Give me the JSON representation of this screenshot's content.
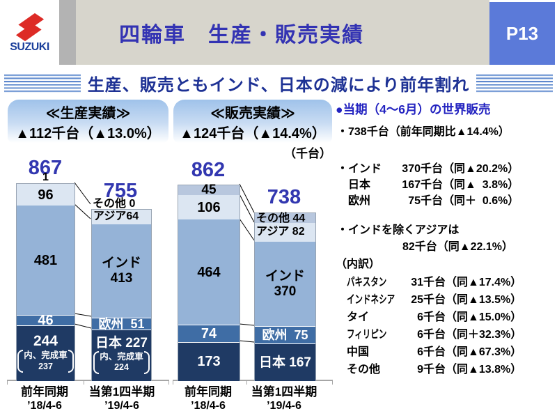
{
  "header": {
    "brand": "SUZUKI",
    "title": "四輪車　生産・販売実績",
    "page_label": "P13"
  },
  "banner": {
    "text": "生産、販売ともインド、日本の減により前年割れ"
  },
  "colors": {
    "segment_other": "#b8c7de",
    "segment_asia": "#dce6f2",
    "segment_india": "#95b3d7",
    "segment_europe": "#3f6da5",
    "segment_japan": "#1f3a64",
    "accent_blue": "#3237b0",
    "page_box_blue": "#5b7ad9",
    "logo_red": "#dd2b26"
  },
  "chart_data": [
    {
      "type": "bar",
      "stacked": true,
      "title": "≪生産実績≫",
      "change_label": "▲112千台（▲13.0%）",
      "unit": "千台",
      "categories": [
        "前年同期 ’18/4-6",
        "当第1四半期 ’19/4-6"
      ],
      "totals": [
        867,
        755
      ],
      "series": [
        {
          "name": "その他",
          "values": [
            1,
            0
          ]
        },
        {
          "name": "アジア",
          "values": [
            96,
            64
          ]
        },
        {
          "name": "インド",
          "values": [
            481,
            413
          ]
        },
        {
          "name": "欧州",
          "values": [
            46,
            51
          ]
        },
        {
          "name": "日本",
          "values": [
            244,
            227
          ]
        }
      ],
      "notes": {
        "label": "内、完成車",
        "values": [
          237,
          224
        ]
      }
    },
    {
      "type": "bar",
      "stacked": true,
      "title": "≪販売実績≫",
      "change_label": "▲124千台（▲14.4%）",
      "unit": "千台",
      "categories": [
        "前年同期 ’18/4-6",
        "当第1四半期 ’19/4-6"
      ],
      "totals": [
        862,
        738
      ],
      "series": [
        {
          "name": "その他",
          "values": [
            45,
            44
          ]
        },
        {
          "name": "アジア",
          "values": [
            106,
            82
          ]
        },
        {
          "name": "インド",
          "values": [
            464,
            370
          ]
        },
        {
          "name": "欧州",
          "values": [
            74,
            75
          ]
        },
        {
          "name": "日本",
          "values": [
            173,
            167
          ]
        }
      ]
    }
  ],
  "charts": [
    {
      "box_title": "≪生産実績≫",
      "box_delta": "▲112千台（▲13.0%）",
      "bars": [
        {
          "total": "867",
          "top_label": "1",
          "asia": "96",
          "india_l1": "481",
          "europe": "46",
          "japan": "244",
          "note1": "内、完成車",
          "note2": "237",
          "cat1": "前年同期",
          "cat2": "’18/4-6"
        },
        {
          "total": "755",
          "top_label": "その他 0",
          "asia_overlay": "アジア64",
          "india_l1": "インド",
          "india_l2": "413",
          "europe": "欧州  51",
          "japan": "日本 227",
          "note1": "内、完成車",
          "note2": "224",
          "cat1": "当第1四半期",
          "cat2": "’19/4-6"
        }
      ]
    },
    {
      "box_title": "≪販売実績≫",
      "box_delta": "▲124千台（▲14.4%）",
      "unit_label": "（千台）",
      "bars": [
        {
          "total": "862",
          "other": "45",
          "asia": "106",
          "india_l1": "464",
          "europe": "74",
          "japan": "173",
          "cat1": "前年同期",
          "cat2": "’18/4-6"
        },
        {
          "total": "738",
          "other": "その他 44",
          "asia": "アジア 82",
          "india_l1": "インド",
          "india_l2": "370",
          "europe": "欧州  75",
          "japan": "日本 167",
          "cat1": "当第1四半期",
          "cat2": "’19/4-6"
        }
      ]
    }
  ],
  "world": {
    "heading": "●当期（4～6月）の世界販売",
    "total_line": "・738千台（前年同期比▲14.4%）",
    "major": [
      {
        "name": "・インド",
        "qty": "370千台",
        "pct": "（同▲20.2%）"
      },
      {
        "name": "　日本",
        "qty": "167千台",
        "pct": "（同▲  3.8%）"
      },
      {
        "name": "　欧州",
        "qty": "75千台",
        "pct": "（同＋  0.6%）"
      }
    ],
    "asia_line1": "・インドを除くアジアは",
    "asia_line2": "82千台（同▲22.1%）",
    "breakdown_title": "（内訳）",
    "breakdown": [
      {
        "name": "パキスタン",
        "qty": "31千台",
        "pct": "（同▲17.4%）"
      },
      {
        "name": "インドネシア",
        "qty": "25千台",
        "pct": "（同▲13.5%）"
      },
      {
        "name": "タイ",
        "qty": "6千台",
        "pct": "（同▲15.0%）"
      },
      {
        "name": "フィリピン",
        "qty": "6千台",
        "pct": "（同＋32.3%）"
      },
      {
        "name": "中国",
        "qty": "6千台",
        "pct": "（同▲67.3%）"
      },
      {
        "name": "その他",
        "qty": "9千台",
        "pct": "（同▲13.8%）"
      }
    ]
  }
}
